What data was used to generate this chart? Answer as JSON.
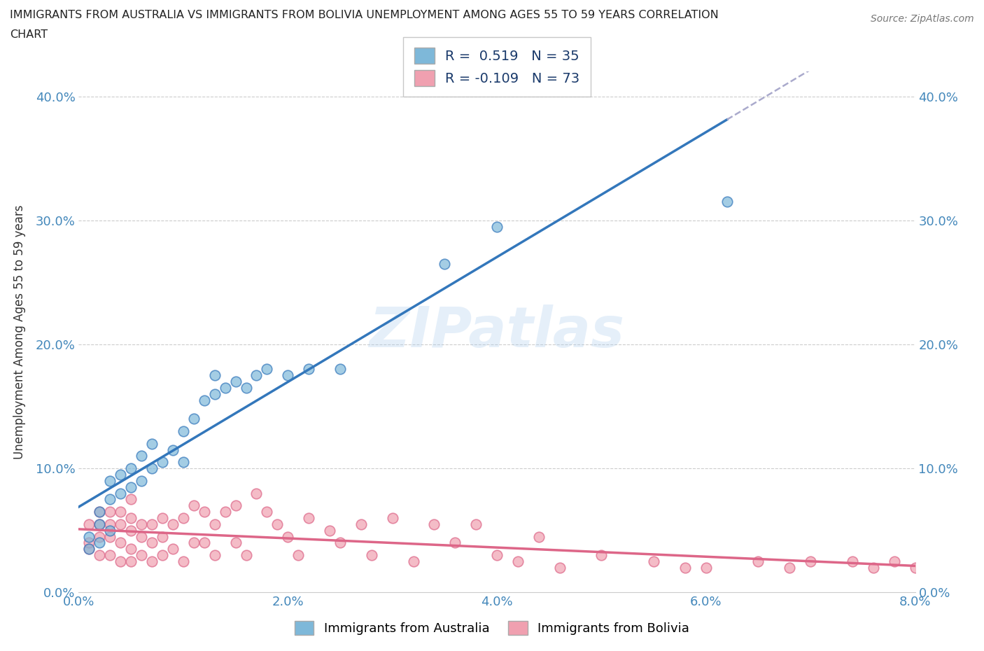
{
  "title_line1": "IMMIGRANTS FROM AUSTRALIA VS IMMIGRANTS FROM BOLIVIA UNEMPLOYMENT AMONG AGES 55 TO 59 YEARS CORRELATION",
  "title_line2": "CHART",
  "source": "Source: ZipAtlas.com",
  "ylabel": "Unemployment Among Ages 55 to 59 years",
  "xlim": [
    0.0,
    0.08
  ],
  "ylim": [
    0.0,
    0.42
  ],
  "xticks": [
    0.0,
    0.02,
    0.04,
    0.06,
    0.08
  ],
  "yticks": [
    0.0,
    0.1,
    0.2,
    0.3,
    0.4
  ],
  "xticklabels": [
    "0.0%",
    "2.0%",
    "4.0%",
    "6.0%",
    "8.0%"
  ],
  "yticklabels": [
    "0.0%",
    "10.0%",
    "20.0%",
    "30.0%",
    "40.0%"
  ],
  "australia_color": "#7eb8d9",
  "australia_line_color": "#3377bb",
  "bolivia_color": "#f0a0b0",
  "bolivia_line_color": "#dd6688",
  "australia_R": 0.519,
  "australia_N": 35,
  "bolivia_R": -0.109,
  "bolivia_N": 73,
  "watermark": "ZIPatlas",
  "australia_scatter_x": [
    0.001,
    0.001,
    0.002,
    0.002,
    0.002,
    0.003,
    0.003,
    0.003,
    0.004,
    0.004,
    0.005,
    0.005,
    0.006,
    0.006,
    0.007,
    0.007,
    0.008,
    0.009,
    0.01,
    0.01,
    0.011,
    0.012,
    0.013,
    0.013,
    0.014,
    0.015,
    0.016,
    0.017,
    0.018,
    0.02,
    0.022,
    0.025,
    0.035,
    0.04,
    0.062
  ],
  "australia_scatter_y": [
    0.035,
    0.045,
    0.04,
    0.055,
    0.065,
    0.05,
    0.075,
    0.09,
    0.08,
    0.095,
    0.085,
    0.1,
    0.09,
    0.11,
    0.1,
    0.12,
    0.105,
    0.115,
    0.13,
    0.105,
    0.14,
    0.155,
    0.16,
    0.175,
    0.165,
    0.17,
    0.165,
    0.175,
    0.18,
    0.175,
    0.18,
    0.18,
    0.265,
    0.295,
    0.315
  ],
  "bolivia_scatter_x": [
    0.001,
    0.001,
    0.001,
    0.002,
    0.002,
    0.002,
    0.002,
    0.003,
    0.003,
    0.003,
    0.003,
    0.004,
    0.004,
    0.004,
    0.004,
    0.005,
    0.005,
    0.005,
    0.005,
    0.005,
    0.006,
    0.006,
    0.006,
    0.007,
    0.007,
    0.007,
    0.008,
    0.008,
    0.008,
    0.009,
    0.009,
    0.01,
    0.01,
    0.011,
    0.011,
    0.012,
    0.012,
    0.013,
    0.013,
    0.014,
    0.015,
    0.015,
    0.016,
    0.017,
    0.018,
    0.019,
    0.02,
    0.021,
    0.022,
    0.024,
    0.025,
    0.027,
    0.028,
    0.03,
    0.032,
    0.034,
    0.036,
    0.038,
    0.04,
    0.042,
    0.044,
    0.046,
    0.05,
    0.055,
    0.058,
    0.06,
    0.065,
    0.068,
    0.07,
    0.074,
    0.076,
    0.078,
    0.08
  ],
  "bolivia_scatter_y": [
    0.035,
    0.04,
    0.055,
    0.03,
    0.045,
    0.055,
    0.065,
    0.03,
    0.045,
    0.055,
    0.065,
    0.025,
    0.04,
    0.055,
    0.065,
    0.025,
    0.035,
    0.05,
    0.06,
    0.075,
    0.03,
    0.045,
    0.055,
    0.025,
    0.04,
    0.055,
    0.03,
    0.045,
    0.06,
    0.035,
    0.055,
    0.025,
    0.06,
    0.04,
    0.07,
    0.04,
    0.065,
    0.03,
    0.055,
    0.065,
    0.04,
    0.07,
    0.03,
    0.08,
    0.065,
    0.055,
    0.045,
    0.03,
    0.06,
    0.05,
    0.04,
    0.055,
    0.03,
    0.06,
    0.025,
    0.055,
    0.04,
    0.055,
    0.03,
    0.025,
    0.045,
    0.02,
    0.03,
    0.025,
    0.02,
    0.02,
    0.025,
    0.02,
    0.025,
    0.025,
    0.02,
    0.025,
    0.02
  ],
  "legend_label_australia": "Immigrants from Australia",
  "legend_label_bolivia": "Immigrants from Bolivia"
}
